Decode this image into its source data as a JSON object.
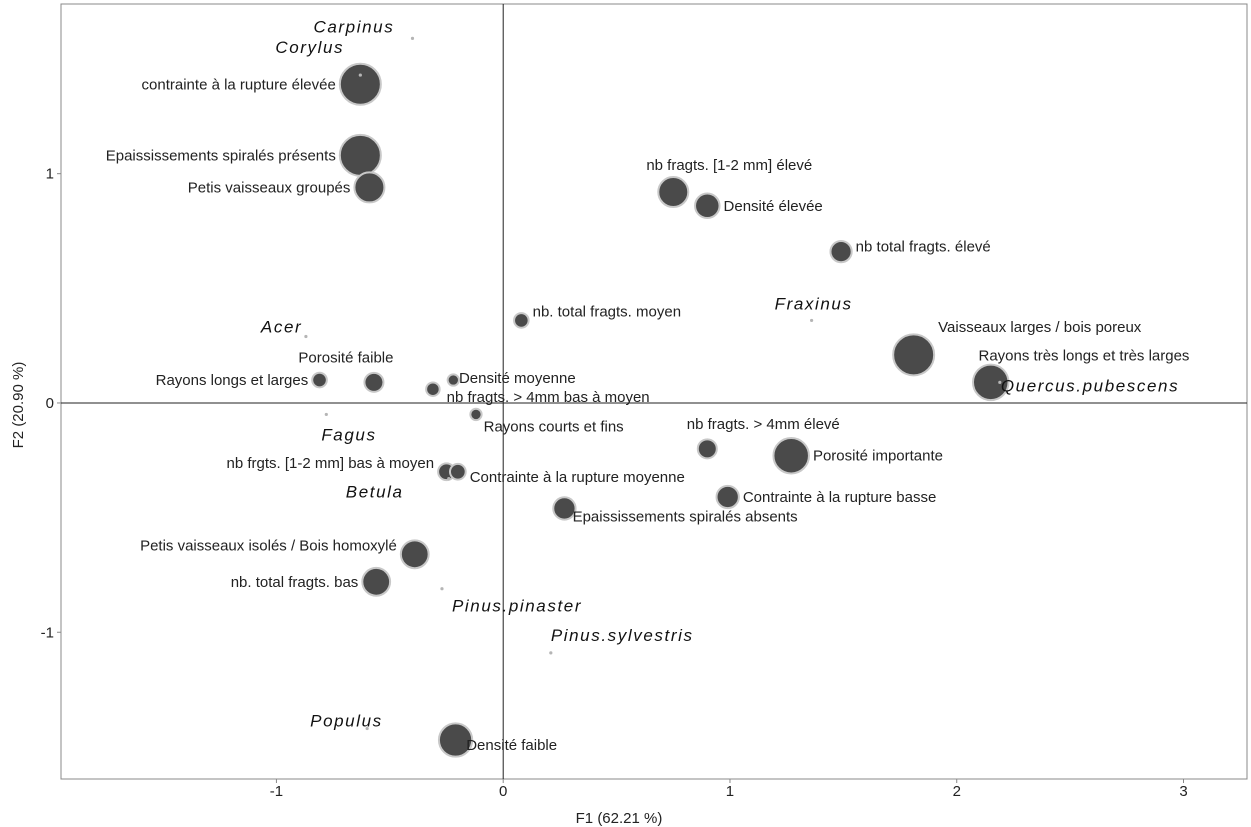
{
  "chart_data": {
    "type": "scatter",
    "xlabel": "F1 (62.21 %)",
    "ylabel": "F2 (20.90 %)",
    "xlim": [
      -1.95,
      3.28
    ],
    "ylim": [
      -1.64,
      1.74
    ],
    "x_ticks": [
      {
        "value": -1,
        "label": "-1"
      },
      {
        "value": 0,
        "label": "0"
      },
      {
        "value": 1,
        "label": "1"
      },
      {
        "value": 2,
        "label": "2"
      },
      {
        "value": 3,
        "label": "3"
      }
    ],
    "y_ticks": [
      {
        "value": -1,
        "label": "-1"
      },
      {
        "value": 0,
        "label": "0"
      },
      {
        "value": 1,
        "label": "1"
      }
    ],
    "grid": false,
    "reference_lines": [
      {
        "axis": "x",
        "value": 0
      },
      {
        "axis": "y",
        "value": 0
      }
    ],
    "colors": {
      "variable_point": "#4a4a4a",
      "variable_outline": "#c8c8c8",
      "species_point": "#b5b5b5"
    },
    "series": [
      {
        "kind": "variables",
        "points": [
          {
            "label": "contrainte à la rupture élevée",
            "x": -0.63,
            "y": 1.39,
            "size": 3
          },
          {
            "label": "Epaississements spiralés présents",
            "x": -0.63,
            "y": 1.08,
            "size": 3
          },
          {
            "label": "Petis vaisseaux groupés",
            "x": -0.59,
            "y": 0.94,
            "size": 2
          },
          {
            "label": "nb fragts. [1-2 mm] élevé",
            "x": 0.75,
            "y": 0.92,
            "size": 2
          },
          {
            "label": "Densité élevée",
            "x": 0.9,
            "y": 0.86,
            "size": 1.5
          },
          {
            "label": "nb total fragts. élevé",
            "x": 1.49,
            "y": 0.66,
            "size": 1.2
          },
          {
            "label": "nb. total fragts. moyen",
            "x": 0.08,
            "y": 0.36,
            "size": 0.6
          },
          {
            "label": "Vaisseaux larges / bois poreux",
            "x": 1.81,
            "y": 0.21,
            "size": 3
          },
          {
            "label": "Rayons très longs et très larges",
            "x": 2.15,
            "y": 0.09,
            "size": 2.5
          },
          {
            "label": "Porosité faible",
            "x": -0.57,
            "y": 0.09,
            "size": 1
          },
          {
            "label": "Rayons longs et larges",
            "x": -0.81,
            "y": 0.1,
            "size": 0.6
          },
          {
            "label": "Densité moyenne",
            "x": -0.22,
            "y": 0.1,
            "size": 0.3
          },
          {
            "label": "nb fragts. > 4mm bas à moyen",
            "x": -0.31,
            "y": 0.06,
            "size": 0.5
          },
          {
            "label": "Rayons courts et fins",
            "x": -0.12,
            "y": -0.05,
            "size": 0.3
          },
          {
            "label": "nb fragts. > 4mm élevé",
            "x": 0.9,
            "y": -0.2,
            "size": 1
          },
          {
            "label": "Porosité importante",
            "x": 1.27,
            "y": -0.23,
            "size": 2.5
          },
          {
            "label": "nb frgts. [1-2 mm] bas à moyen",
            "x": -0.25,
            "y": -0.3,
            "size": 0.8
          },
          {
            "label": "Contrainte à la rupture moyenne",
            "x": -0.2,
            "y": -0.3,
            "size": 0.7
          },
          {
            "label": "Contrainte à la rupture basse",
            "x": 0.99,
            "y": -0.41,
            "size": 1.3
          },
          {
            "label": "Epaississements spiralés absents",
            "x": 0.27,
            "y": -0.46,
            "size": 1.3
          },
          {
            "label": "Petis vaisseaux isolés / Bois homoxylé",
            "x": -0.39,
            "y": -0.66,
            "size": 1.8
          },
          {
            "label": "nb. total fragts. bas",
            "x": -0.56,
            "y": -0.78,
            "size": 1.8
          },
          {
            "label": "Densité faible",
            "x": -0.21,
            "y": -1.47,
            "size": 2.3
          }
        ]
      },
      {
        "kind": "species",
        "points": [
          {
            "label": "Carpinus",
            "x": -0.4,
            "y": 1.59
          },
          {
            "label": "Corylus",
            "x": -0.63,
            "y": 1.43
          },
          {
            "label": "Acer",
            "x": -0.87,
            "y": 0.29
          },
          {
            "label": "Fraxinus",
            "x": 1.36,
            "y": 0.36
          },
          {
            "label": "Quercus.pubescens",
            "x": 2.19,
            "y": 0.09
          },
          {
            "label": "Fagus",
            "x": -0.78,
            "y": -0.05
          },
          {
            "label": "Betula",
            "x": -0.24,
            "y": -0.33
          },
          {
            "label": "Pinus.pinaster",
            "x": -0.27,
            "y": -0.81
          },
          {
            "label": "Pinus.sylvestris",
            "x": 0.21,
            "y": -1.09
          },
          {
            "label": "Populus",
            "x": -0.6,
            "y": -1.42
          }
        ]
      }
    ]
  }
}
